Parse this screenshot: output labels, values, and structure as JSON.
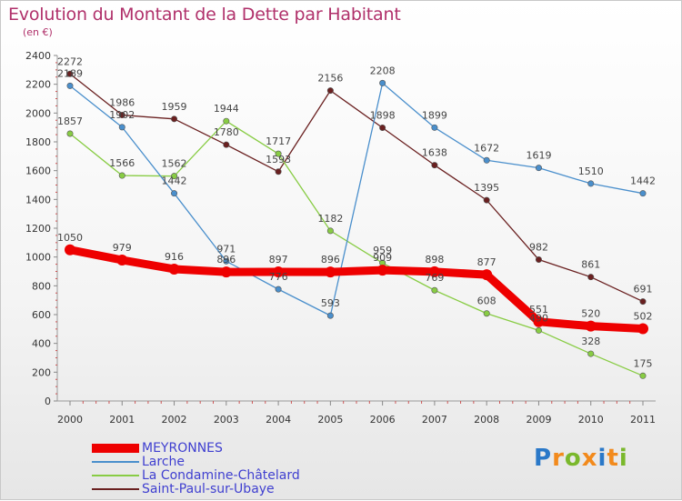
{
  "title": "Evolution du Montant de la Dette par Habitant",
  "subtitle": "(en €)",
  "logo_text": "Proxiti",
  "chart_data": {
    "type": "line",
    "title": "Evolution du Montant de la Dette par Habitant",
    "subtitle": "(en €)",
    "x": [
      "2000",
      "2001",
      "2002",
      "2003",
      "2004",
      "2005",
      "2006",
      "2007",
      "2008",
      "2009",
      "2010",
      "2011"
    ],
    "ylim": [
      0,
      2400
    ],
    "yticks": [
      0,
      200,
      400,
      600,
      800,
      1000,
      1200,
      1400,
      1600,
      1800,
      2000,
      2200,
      2400
    ],
    "grid": false,
    "legend_position": "bottom-left",
    "series": [
      {
        "name": "MEYRONNES",
        "color": "#ee0000",
        "values": [
          1050,
          979,
          916,
          896,
          897,
          896,
          909,
          898,
          877,
          551,
          520,
          502
        ],
        "labels": [
          "1050",
          "979",
          "916",
          "896",
          "897",
          "896",
          "909",
          "898",
          "877",
          "551",
          "520",
          "502"
        ]
      },
      {
        "name": "Larche",
        "color": "#4a8fcc",
        "values": [
          2189,
          1902,
          1442,
          971,
          776,
          593,
          2208,
          1899,
          1672,
          1619,
          1510,
          1442
        ],
        "labels": [
          "2189",
          "1902",
          "1442",
          "971",
          "776",
          "593",
          "2208",
          "1899",
          "1672",
          "1619",
          "1510",
          "1442"
        ]
      },
      {
        "name": "La Condamine-Châtelard",
        "color": "#88cc44",
        "values": [
          1857,
          1566,
          1562,
          1944,
          1717,
          1182,
          959,
          769,
          608,
          490,
          328,
          175
        ],
        "labels": [
          "1857",
          "1566",
          "1562",
          "1944",
          "1717",
          "1182",
          "959",
          "769",
          "608",
          "490",
          "328",
          "175"
        ]
      },
      {
        "name": "Saint-Paul-sur-Ubaye",
        "color": "#6a2020",
        "values": [
          2272,
          1986,
          1959,
          1780,
          1593,
          2156,
          1898,
          1638,
          1395,
          982,
          861,
          691
        ],
        "labels": [
          "2272",
          "1986",
          "1959",
          "1780",
          "1593",
          "2156",
          "1898",
          "1638",
          "1395",
          "982",
          "861",
          "691"
        ]
      }
    ]
  }
}
